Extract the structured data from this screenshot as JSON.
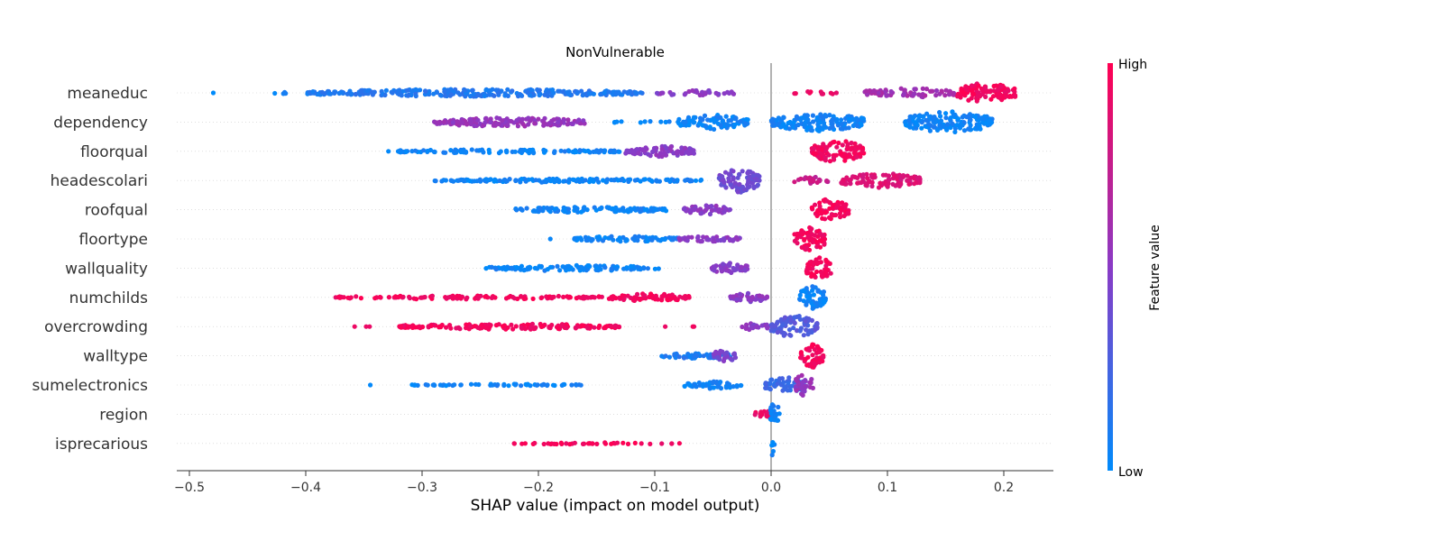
{
  "chart_data": {
    "type": "scatter",
    "subtype": "shap-beeswarm",
    "title": "NonVulnerable",
    "xlabel": "SHAP value (impact on model output)",
    "xlim": [
      -0.52,
      0.245
    ],
    "xticks": [
      -0.5,
      -0.4,
      -0.3,
      -0.2,
      -0.1,
      0.0,
      0.1,
      0.2
    ],
    "xtick_labels": [
      "−0.5",
      "−0.4",
      "−0.3",
      "−0.2",
      "−0.1",
      "0.0",
      "0.1",
      "0.2"
    ],
    "colorbar": {
      "label": "Feature value",
      "high": "High",
      "low": "Low",
      "low_color": "#008bfb",
      "high_color": "#ff0052"
    },
    "features": [
      {
        "name": "meaneduc",
        "clusters": [
          {
            "min": -0.48,
            "max": -0.48,
            "value": 0.0,
            "density": 0.05,
            "width": 0
          },
          {
            "min": -0.435,
            "max": -0.41,
            "value": 0.05,
            "density": 0.3,
            "width": 1
          },
          {
            "min": -0.4,
            "max": -0.11,
            "value": 0.12,
            "density": 1.0,
            "width": 4
          },
          {
            "min": -0.1,
            "max": -0.03,
            "value": 0.5,
            "density": 0.6,
            "width": 3
          },
          {
            "min": 0.02,
            "max": 0.06,
            "value": 0.92,
            "density": 0.4,
            "width": 2
          },
          {
            "min": 0.08,
            "max": 0.16,
            "value": 0.6,
            "density": 0.8,
            "width": 5
          },
          {
            "min": 0.16,
            "max": 0.21,
            "value": 0.95,
            "density": 1.0,
            "width": 11
          }
        ]
      },
      {
        "name": "dependency",
        "clusters": [
          {
            "min": -0.29,
            "max": -0.16,
            "value": 0.55,
            "density": 1.0,
            "width": 5
          },
          {
            "min": -0.14,
            "max": -0.08,
            "value": 0.05,
            "density": 0.3,
            "width": 1
          },
          {
            "min": -0.08,
            "max": -0.02,
            "value": 0.05,
            "density": 1.0,
            "width": 8
          },
          {
            "min": 0.0,
            "max": 0.08,
            "value": 0.05,
            "density": 1.0,
            "width": 10
          },
          {
            "min": 0.115,
            "max": 0.19,
            "value": 0.05,
            "density": 1.0,
            "width": 12
          }
        ]
      },
      {
        "name": "floorqual",
        "clusters": [
          {
            "min": -0.33,
            "max": -0.13,
            "value": 0.05,
            "density": 0.8,
            "width": 2
          },
          {
            "min": -0.125,
            "max": -0.065,
            "value": 0.5,
            "density": 1.0,
            "width": 6
          },
          {
            "min": 0.035,
            "max": 0.08,
            "value": 0.95,
            "density": 1.0,
            "width": 12
          }
        ]
      },
      {
        "name": "headescolari",
        "clusters": [
          {
            "min": -0.29,
            "max": -0.06,
            "value": 0.05,
            "density": 0.9,
            "width": 2
          },
          {
            "min": -0.045,
            "max": -0.01,
            "value": 0.4,
            "density": 1.0,
            "width": 13
          },
          {
            "min": 0.02,
            "max": 0.05,
            "value": 0.75,
            "density": 0.8,
            "width": 4
          },
          {
            "min": 0.06,
            "max": 0.128,
            "value": 0.85,
            "density": 1.0,
            "width": 8
          }
        ]
      },
      {
        "name": "roofqual",
        "clusters": [
          {
            "min": -0.22,
            "max": -0.09,
            "value": 0.05,
            "density": 1.0,
            "width": 3
          },
          {
            "min": -0.075,
            "max": -0.035,
            "value": 0.5,
            "density": 1.0,
            "width": 5
          },
          {
            "min": 0.035,
            "max": 0.067,
            "value": 0.95,
            "density": 1.0,
            "width": 12
          }
        ]
      },
      {
        "name": "floortype",
        "clusters": [
          {
            "min": -0.19,
            "max": -0.19,
            "value": 0.05,
            "density": 0.05,
            "width": 0
          },
          {
            "min": -0.17,
            "max": -0.08,
            "value": 0.05,
            "density": 1.0,
            "width": 3
          },
          {
            "min": -0.08,
            "max": -0.025,
            "value": 0.5,
            "density": 0.8,
            "width": 3
          },
          {
            "min": 0.02,
            "max": 0.047,
            "value": 0.95,
            "density": 1.0,
            "width": 13
          }
        ]
      },
      {
        "name": "wallquality",
        "clusters": [
          {
            "min": -0.245,
            "max": -0.095,
            "value": 0.05,
            "density": 0.8,
            "width": 3
          },
          {
            "min": -0.052,
            "max": -0.02,
            "value": 0.5,
            "density": 1.0,
            "width": 6
          },
          {
            "min": 0.03,
            "max": 0.052,
            "value": 0.95,
            "density": 1.0,
            "width": 13
          }
        ]
      },
      {
        "name": "numchilds",
        "clusters": [
          {
            "min": -0.375,
            "max": -0.14,
            "value": 0.95,
            "density": 0.7,
            "width": 2
          },
          {
            "min": -0.14,
            "max": -0.07,
            "value": 0.95,
            "density": 1.0,
            "width": 4
          },
          {
            "min": -0.035,
            "max": -0.003,
            "value": 0.5,
            "density": 1.0,
            "width": 5
          },
          {
            "min": 0.024,
            "max": 0.047,
            "value": 0.05,
            "density": 1.0,
            "width": 13
          }
        ]
      },
      {
        "name": "overcrowding",
        "clusters": [
          {
            "min": -0.36,
            "max": -0.335,
            "value": 0.95,
            "density": 0.3,
            "width": 0
          },
          {
            "min": -0.32,
            "max": -0.13,
            "value": 0.95,
            "density": 1.0,
            "width": 3
          },
          {
            "min": -0.1,
            "max": -0.06,
            "value": 0.95,
            "density": 0.2,
            "width": 0
          },
          {
            "min": -0.025,
            "max": 0.0,
            "value": 0.5,
            "density": 0.8,
            "width": 4
          },
          {
            "min": 0.0,
            "max": 0.04,
            "value": 0.3,
            "density": 1.0,
            "width": 12
          }
        ]
      },
      {
        "name": "walltype",
        "clusters": [
          {
            "min": -0.095,
            "max": -0.03,
            "value": 0.1,
            "density": 0.9,
            "width": 3
          },
          {
            "min": -0.05,
            "max": -0.03,
            "value": 0.45,
            "density": 1.0,
            "width": 7
          },
          {
            "min": 0.025,
            "max": 0.045,
            "value": 0.95,
            "density": 1.0,
            "width": 13
          }
        ]
      },
      {
        "name": "sumelectronics",
        "clusters": [
          {
            "min": -0.345,
            "max": -0.345,
            "value": 0.05,
            "density": 0.05,
            "width": 0
          },
          {
            "min": -0.31,
            "max": -0.16,
            "value": 0.05,
            "density": 0.7,
            "width": 1
          },
          {
            "min": -0.075,
            "max": -0.025,
            "value": 0.05,
            "density": 1.0,
            "width": 4
          },
          {
            "min": -0.005,
            "max": 0.03,
            "value": 0.2,
            "density": 1.0,
            "width": 9
          },
          {
            "min": 0.02,
            "max": 0.036,
            "value": 0.55,
            "density": 1.0,
            "width": 12
          }
        ]
      },
      {
        "name": "region",
        "clusters": [
          {
            "min": -0.015,
            "max": 0.0,
            "value": 0.9,
            "density": 1.0,
            "width": 5
          },
          {
            "min": -0.002,
            "max": 0.008,
            "value": 0.05,
            "density": 1.0,
            "width": 12
          }
        ]
      },
      {
        "name": "isprecarious",
        "clusters": [
          {
            "min": -0.222,
            "max": -0.078,
            "value": 0.95,
            "density": 0.5,
            "width": 1
          },
          {
            "min": 0.0,
            "max": 0.003,
            "value": 0.05,
            "density": 1.0,
            "width": 14
          }
        ]
      }
    ]
  }
}
